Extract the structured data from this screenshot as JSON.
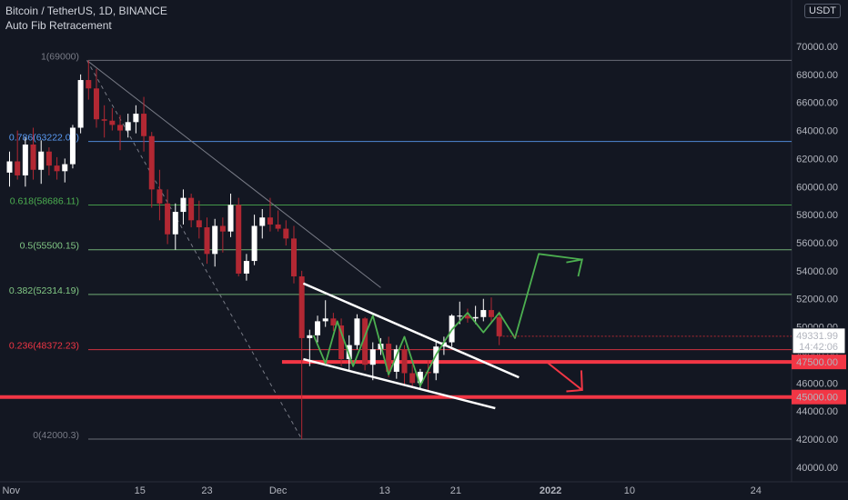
{
  "header": {
    "symbol": "Bitcoin / TetherUS, 1D, BINANCE",
    "indicator": "Auto Fib Retracement",
    "currency": "USDT"
  },
  "colors": {
    "background": "#131722",
    "up_candle": "#ffffff",
    "down_candle": "#b22833",
    "support": "#f23645",
    "pattern_line": "#ffffff",
    "projection": "#4caf50"
  },
  "chart_data": {
    "type": "candlestick",
    "title": "Bitcoin / TetherUS, 1D, BINANCE",
    "ylim": [
      39000,
      74000
    ],
    "y_ticks": [
      "40000.00",
      "42000.00",
      "44000.00",
      "46000.00",
      "48000.00",
      "50000.00",
      "52000.00",
      "54000.00",
      "56000.00",
      "58000.00",
      "60000.00",
      "62000.00",
      "64000.00",
      "66000.00",
      "68000.00",
      "70000.00"
    ],
    "x_ticks": [
      "Nov",
      "15",
      "23",
      "Dec",
      "13",
      "21",
      "2022",
      "10",
      "24"
    ],
    "candles": [
      {
        "o": 61000,
        "h": 62500,
        "l": 60000,
        "c": 61800
      },
      {
        "o": 61800,
        "h": 64000,
        "l": 60500,
        "c": 60800
      },
      {
        "o": 60800,
        "h": 63500,
        "l": 60000,
        "c": 63000
      },
      {
        "o": 63000,
        "h": 64200,
        "l": 60500,
        "c": 61200
      },
      {
        "o": 61200,
        "h": 63300,
        "l": 60200,
        "c": 62500
      },
      {
        "o": 62500,
        "h": 62800,
        "l": 60800,
        "c": 61500
      },
      {
        "o": 61500,
        "h": 62100,
        "l": 60500,
        "c": 61100
      },
      {
        "o": 61100,
        "h": 62000,
        "l": 60300,
        "c": 61600
      },
      {
        "o": 61600,
        "h": 64400,
        "l": 61300,
        "c": 64200
      },
      {
        "o": 64200,
        "h": 68000,
        "l": 63800,
        "c": 67600
      },
      {
        "o": 67600,
        "h": 69000,
        "l": 66200,
        "c": 67000
      },
      {
        "o": 67000,
        "h": 68400,
        "l": 64200,
        "c": 64800
      },
      {
        "o": 64800,
        "h": 65800,
        "l": 63500,
        "c": 64700
      },
      {
        "o": 64700,
        "h": 65600,
        "l": 64000,
        "c": 64400
      },
      {
        "o": 64400,
        "h": 65100,
        "l": 62600,
        "c": 64000
      },
      {
        "o": 64000,
        "h": 65200,
        "l": 63500,
        "c": 64600
      },
      {
        "o": 64600,
        "h": 65800,
        "l": 63800,
        "c": 65200
      },
      {
        "o": 65200,
        "h": 66400,
        "l": 62500,
        "c": 63600
      },
      {
        "o": 63600,
        "h": 63900,
        "l": 58500,
        "c": 59800
      },
      {
        "o": 59800,
        "h": 61200,
        "l": 57600,
        "c": 58800
      },
      {
        "o": 58800,
        "h": 59800,
        "l": 55900,
        "c": 56600
      },
      {
        "o": 56600,
        "h": 58800,
        "l": 55500,
        "c": 58200
      },
      {
        "o": 58200,
        "h": 59800,
        "l": 57300,
        "c": 59200
      },
      {
        "o": 59200,
        "h": 59500,
        "l": 57100,
        "c": 57600
      },
      {
        "o": 57600,
        "h": 59000,
        "l": 56300,
        "c": 57100
      },
      {
        "o": 57100,
        "h": 57800,
        "l": 54500,
        "c": 55200
      },
      {
        "o": 55200,
        "h": 57700,
        "l": 54300,
        "c": 57200
      },
      {
        "o": 57200,
        "h": 57800,
        "l": 55300,
        "c": 56800
      },
      {
        "o": 56800,
        "h": 59500,
        "l": 56400,
        "c": 58700
      },
      {
        "o": 58700,
        "h": 59200,
        "l": 53600,
        "c": 53800
      },
      {
        "o": 53800,
        "h": 55200,
        "l": 53300,
        "c": 54700
      },
      {
        "o": 54700,
        "h": 58000,
        "l": 54400,
        "c": 57200
      },
      {
        "o": 57200,
        "h": 58400,
        "l": 56300,
        "c": 57800
      },
      {
        "o": 57800,
        "h": 59200,
        "l": 56800,
        "c": 57300
      },
      {
        "o": 57300,
        "h": 58300,
        "l": 56800,
        "c": 57000
      },
      {
        "o": 57000,
        "h": 57600,
        "l": 55800,
        "c": 56300
      },
      {
        "o": 56300,
        "h": 57200,
        "l": 53100,
        "c": 53600
      },
      {
        "o": 53600,
        "h": 54000,
        "l": 42000,
        "c": 49200
      },
      {
        "o": 49200,
        "h": 49800,
        "l": 47200,
        "c": 49400
      },
      {
        "o": 49400,
        "h": 50800,
        "l": 48900,
        "c": 50400
      },
      {
        "o": 50400,
        "h": 51900,
        "l": 50000,
        "c": 50600
      },
      {
        "o": 50600,
        "h": 51000,
        "l": 49700,
        "c": 50100
      },
      {
        "o": 50100,
        "h": 50600,
        "l": 47200,
        "c": 47700
      },
      {
        "o": 47700,
        "h": 49400,
        "l": 46900,
        "c": 48700
      },
      {
        "o": 48700,
        "h": 50900,
        "l": 48400,
        "c": 50600
      },
      {
        "o": 50600,
        "h": 50700,
        "l": 46900,
        "c": 47300
      },
      {
        "o": 47300,
        "h": 48900,
        "l": 46200,
        "c": 48400
      },
      {
        "o": 48400,
        "h": 49200,
        "l": 48000,
        "c": 48800
      },
      {
        "o": 48800,
        "h": 49300,
        "l": 46400,
        "c": 46800
      },
      {
        "o": 46800,
        "h": 48700,
        "l": 46300,
        "c": 48400
      },
      {
        "o": 48400,
        "h": 48700,
        "l": 45800,
        "c": 46700
      },
      {
        "o": 46700,
        "h": 47300,
        "l": 45700,
        "c": 46000
      },
      {
        "o": 46000,
        "h": 47000,
        "l": 45600,
        "c": 46800
      },
      {
        "o": 46800,
        "h": 47600,
        "l": 45500,
        "c": 46700
      },
      {
        "o": 46700,
        "h": 48900,
        "l": 46200,
        "c": 48600
      },
      {
        "o": 48600,
        "h": 49300,
        "l": 48000,
        "c": 48900
      },
      {
        "o": 48900,
        "h": 50900,
        "l": 48600,
        "c": 50800
      },
      {
        "o": 50800,
        "h": 51800,
        "l": 50200,
        "c": 50800
      },
      {
        "o": 50800,
        "h": 51300,
        "l": 50300,
        "c": 50600
      },
      {
        "o": 50600,
        "h": 51500,
        "l": 50200,
        "c": 50700
      },
      {
        "o": 50700,
        "h": 52000,
        "l": 50400,
        "c": 51200
      },
      {
        "o": 51200,
        "h": 52100,
        "l": 50300,
        "c": 50700
      },
      {
        "o": 50700,
        "h": 51100,
        "l": 48700,
        "c": 49332
      }
    ],
    "fib_levels": [
      {
        "label": "1(69000)",
        "value": 69000,
        "color": "#787b86"
      },
      {
        "label": "0.786(63222.06)",
        "value": 63222.06,
        "color": "#5b9cf6"
      },
      {
        "label": "0.618(58686.11)",
        "value": 58686.11,
        "color": "#4caf50"
      },
      {
        "label": "0.5(55500.15)",
        "value": 55500.15,
        "color": "#81c784"
      },
      {
        "label": "0.382(52314.19)",
        "value": 52314.19,
        "color": "#81c784"
      },
      {
        "label": "0.236(48372.23)",
        "value": 48372.23,
        "color": "#f23645"
      },
      {
        "label": "0(42000.3)",
        "value": 42000.3,
        "color": "#787b86"
      }
    ],
    "support_levels": [
      {
        "label": "47500.00",
        "value": 47500
      },
      {
        "label": "45000.00",
        "value": 45000
      }
    ],
    "last_price": {
      "label": "49331.99",
      "countdown": "14:42:06",
      "value": 49331.99
    }
  }
}
